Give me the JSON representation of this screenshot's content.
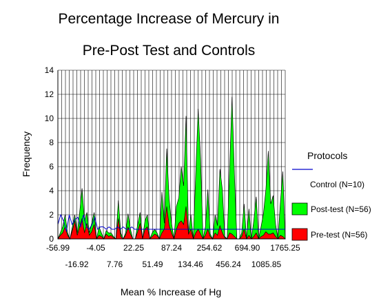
{
  "chart_data": {
    "type": "area",
    "title": "Percentage Increase of Mercury in",
    "subtitle": "Pre-Post Test and Controls",
    "xlabel": "Mean % Increase of Hg",
    "ylabel": "Frequency",
    "ylim": [
      0,
      14
    ],
    "yticks": [
      "0",
      "2",
      "4",
      "6",
      "8",
      "10",
      "12",
      "14"
    ],
    "xticks_row1": [
      "-56.99",
      "-4.05",
      "22.25",
      "87.24",
      "254.62",
      "694.90",
      "1765.25"
    ],
    "xticks_row2": [
      "-16.92",
      "7.76",
      "51.49",
      "134.46",
      "456.24",
      "1085.85"
    ],
    "grid": true,
    "legend_title": "Protocols",
    "legend_position": "right",
    "series": [
      {
        "name": "Control (N=10)",
        "color": "#0000cc",
        "style": "line",
        "values": [
          1.2,
          2,
          1.5,
          0.6,
          2,
          1.2,
          1.6,
          1.8,
          1,
          2,
          1,
          0.8,
          1.2,
          1.8,
          0.8,
          1,
          1,
          0.8,
          1,
          0.8,
          0.8,
          1,
          0.8,
          1,
          0.8,
          0.8,
          1,
          0.8,
          0.8,
          0.8,
          0.8,
          0.8,
          0.8,
          0.8,
          0.8,
          0.8,
          0.8,
          0.8,
          0.8,
          0.8,
          0.8,
          0.8,
          0.8,
          0.8,
          0.8,
          0.8,
          0.8,
          0.8,
          0.8,
          0.8,
          0.8,
          0.8,
          0.8,
          0.8,
          0.8,
          0.8,
          0.8,
          0.8,
          0.8,
          0.8,
          0.8,
          0.8,
          0.8,
          0.8,
          0.8,
          0.8,
          0.8,
          0.8,
          0.8,
          0.8,
          0.8,
          0.8,
          0.8,
          0.8,
          0.8,
          0.8,
          0.8,
          0.8,
          0.8,
          0.8,
          0.8
        ]
      },
      {
        "name": "Post-test (N=56)",
        "color": "#00ff00",
        "style": "area",
        "values": [
          0,
          0.5,
          1,
          2,
          0.5,
          0,
          1,
          2,
          0.5,
          2.2,
          4.2,
          1.5,
          2.2,
          0.5,
          1.3,
          2.2,
          0,
          1,
          0.5,
          0,
          0.7,
          0.5,
          0.5,
          0.2,
          0,
          3.2,
          0.5,
          0,
          0.5,
          2.1,
          0.8,
          0,
          0,
          1.2,
          2.2,
          0,
          1.5,
          2,
          0,
          0.5,
          0.8,
          0.5,
          0,
          3.9,
          1.3,
          7.5,
          3.3,
          1.3,
          0,
          2.7,
          3.4,
          6,
          4.4,
          10.2,
          0.5,
          2,
          0,
          5.4,
          10.8,
          6.6,
          0,
          1,
          4.1,
          0.4,
          0,
          2,
          1.1,
          5.8,
          4.1,
          0.2,
          0,
          5.8,
          11.8,
          5.3,
          0,
          0,
          0.5,
          2.9,
          0,
          2.5,
          0,
          1.5,
          3.5,
          0,
          1,
          2.1,
          4.1,
          7.3,
          2.9,
          3.6,
          1.2,
          0,
          3,
          5.6,
          0
        ]
      },
      {
        "name": "Pre-test (N=56)",
        "color": "#ff0000",
        "style": "area",
        "values": [
          0,
          0.3,
          0.5,
          1,
          0.3,
          0,
          0.7,
          1.5,
          0.3,
          1,
          1.7,
          0.5,
          1.3,
          0.3,
          0.6,
          1.2,
          0,
          0.3,
          0.2,
          0,
          0.4,
          0.2,
          0.3,
          0.1,
          0,
          1.7,
          0.2,
          0,
          0.3,
          1,
          0.4,
          0,
          0,
          0.6,
          1.3,
          0,
          0.8,
          1,
          0,
          0.2,
          0.4,
          0.3,
          0,
          0.5,
          0.8,
          2.7,
          1.1,
          0.5,
          0,
          0.8,
          1.3,
          1.5,
          1.2,
          2.7,
          0.4,
          0.8,
          0,
          0.5,
          0.8,
          0.4,
          0,
          0.3,
          0.8,
          0.2,
          0,
          0.5,
          0.3,
          1.1,
          0.5,
          0.1,
          0,
          0.5,
          0.4,
          0.2,
          0,
          0,
          0.2,
          0.8,
          0,
          0.3,
          0,
          0.2,
          0.5,
          0,
          0.2,
          0.3,
          0.6,
          0.4,
          0.4,
          0.5,
          0.2,
          0,
          0.3,
          0.2,
          0
        ]
      }
    ]
  }
}
